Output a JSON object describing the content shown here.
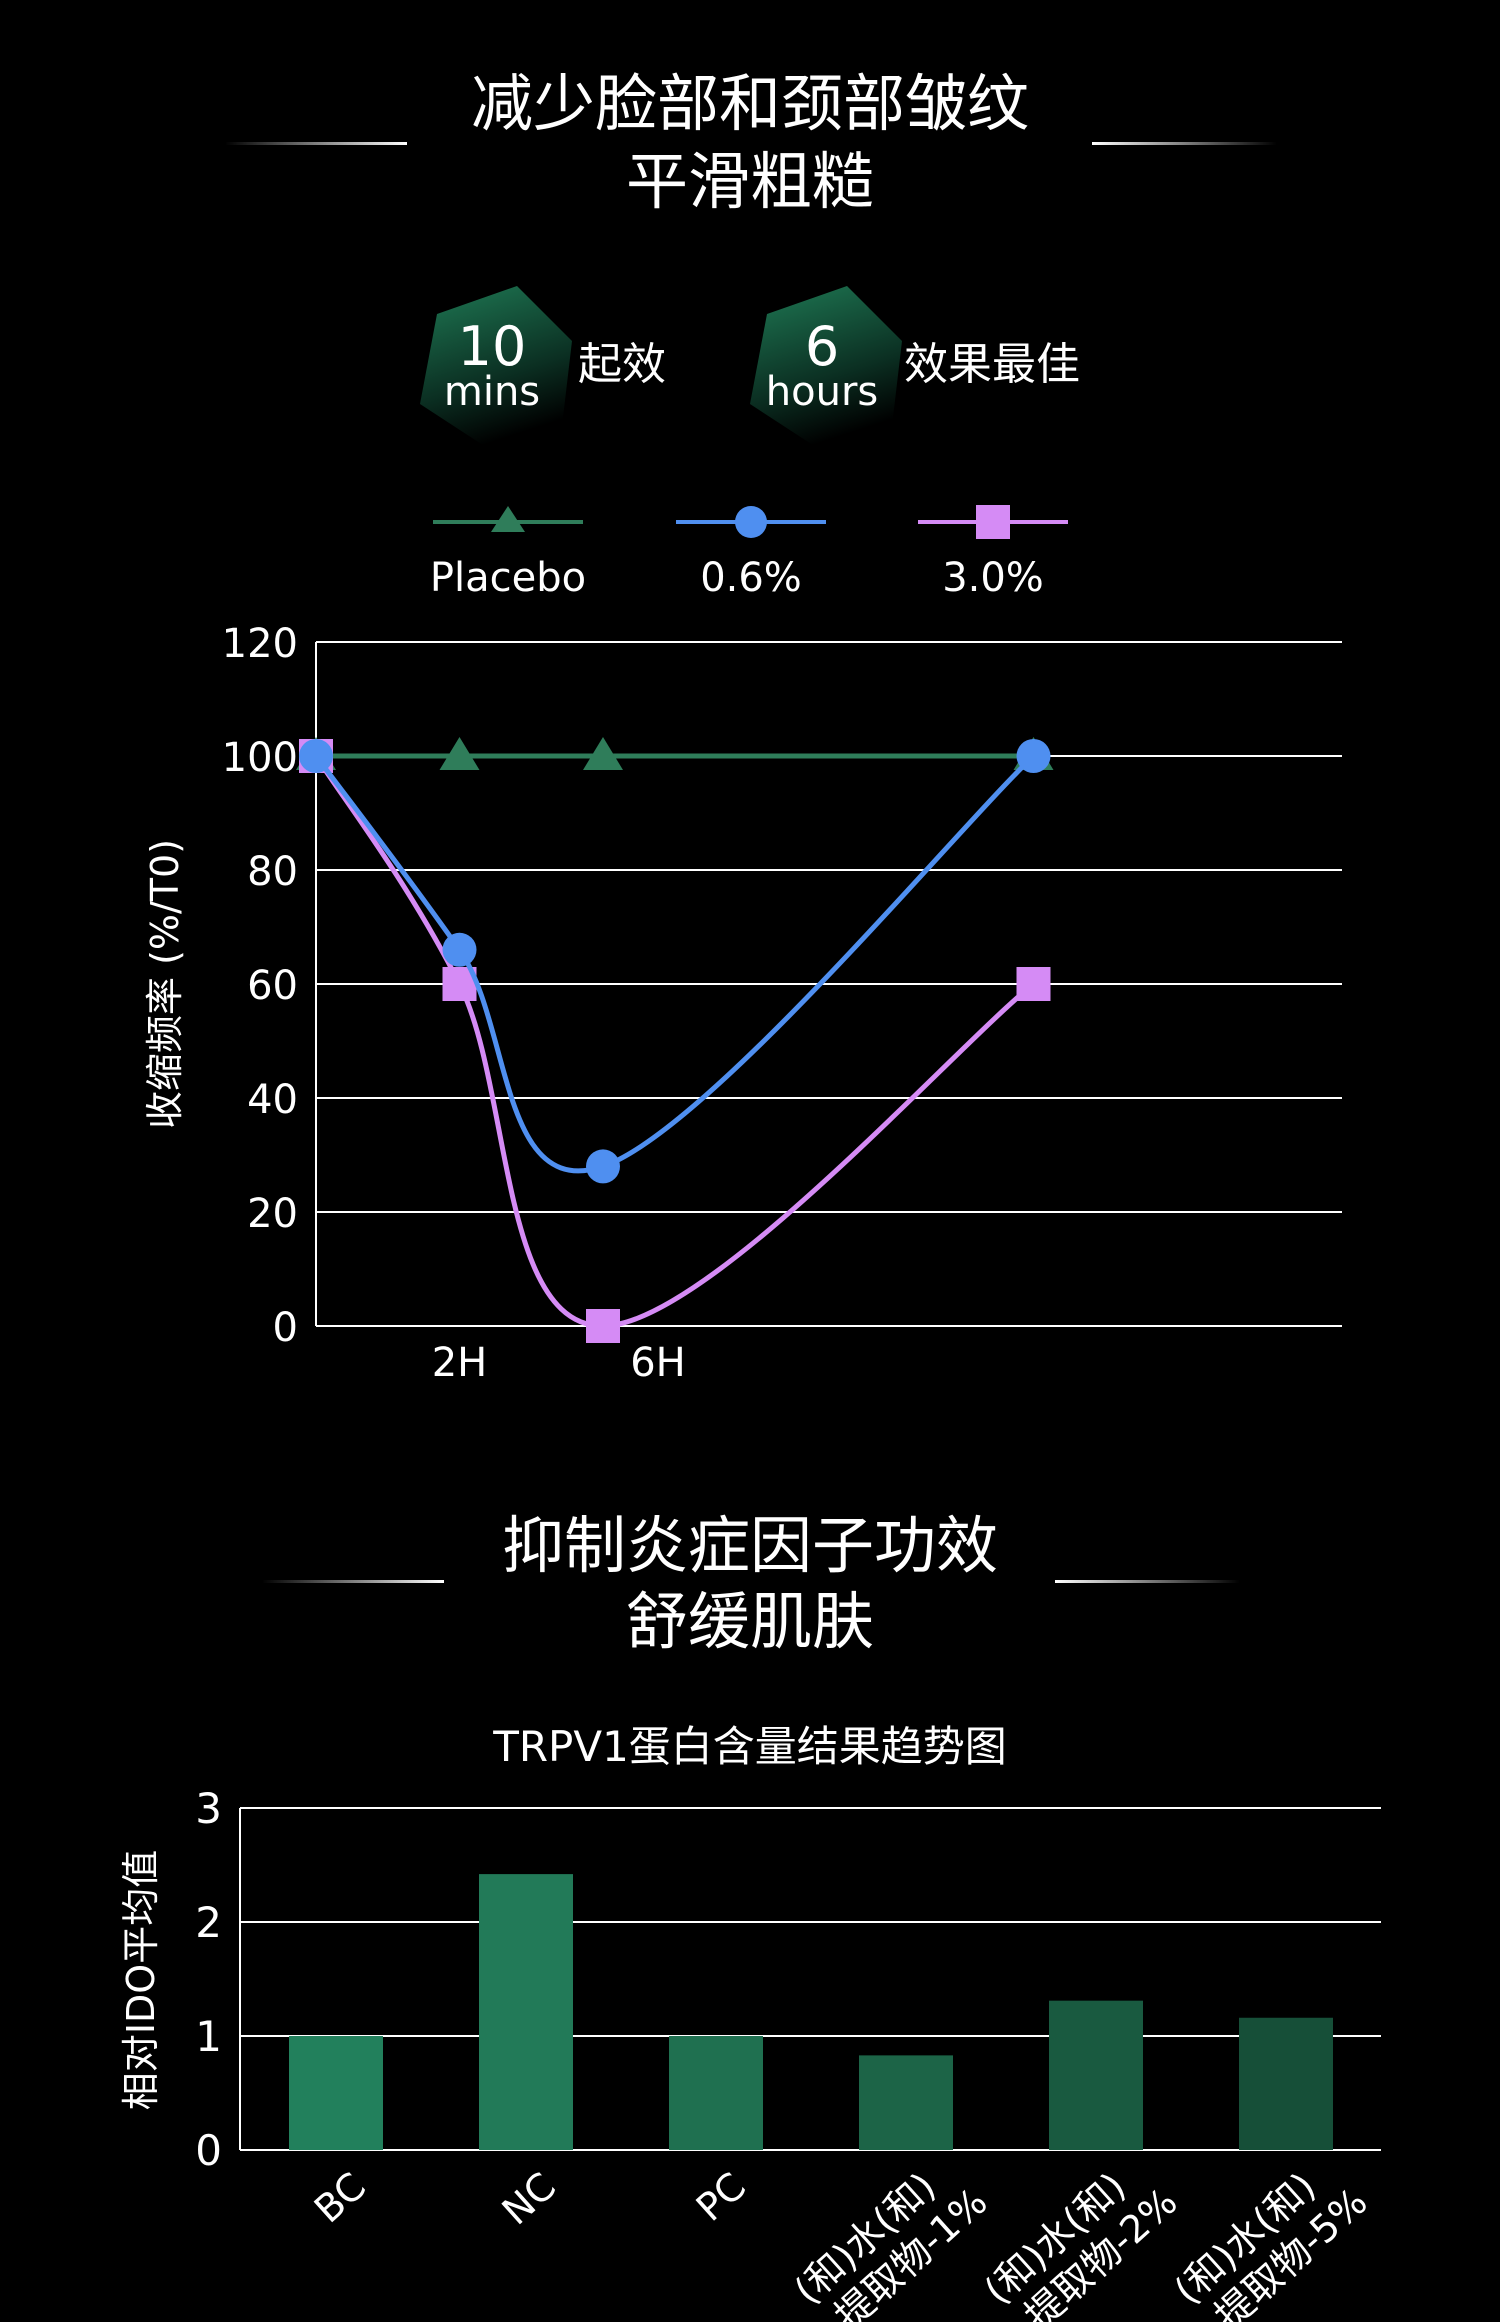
{
  "section1": {
    "title_line1": "减少脸部和颈部皱纹",
    "title_line2": "平滑粗糙",
    "badges": [
      {
        "number": "10",
        "unit": "mins",
        "caption": "起效"
      },
      {
        "number": "6",
        "unit": "hours",
        "caption": "效果最佳"
      }
    ]
  },
  "section2": {
    "title_line1": "抑制炎症因子功效",
    "title_line2": "舒缓肌肤"
  },
  "colors": {
    "placebo": "#2f7d5a",
    "series_06": "#4f8ff0",
    "series_30": "#d58bf5",
    "bar_green": "#22805c",
    "grid": "#ffffff"
  },
  "chart_data": [
    {
      "type": "line",
      "ylabel": "收缩频率 (%/T0)",
      "ylim": [
        0,
        120
      ],
      "yticks": [
        "0",
        "20",
        "40",
        "60",
        "80",
        "100",
        "120"
      ],
      "x_tick_labels": [
        "2H",
        "6H"
      ],
      "legend_placement": "top",
      "grid": true,
      "series": [
        {
          "name": "Placebo",
          "marker": "triangle",
          "x": [
            0,
            1,
            2,
            5
          ],
          "values": [
            100,
            100,
            100,
            100
          ]
        },
        {
          "name": "0.6%",
          "marker": "circle",
          "x": [
            0,
            1,
            2,
            5
          ],
          "values": [
            100,
            66,
            28,
            100
          ]
        },
        {
          "name": "3.0%",
          "marker": "square",
          "x": [
            0,
            1,
            2,
            5
          ],
          "values": [
            100,
            60,
            0,
            60
          ]
        }
      ]
    },
    {
      "type": "bar",
      "title": "TRPV1蛋白含量结果趋势图",
      "ylabel": "相对IDO平均值",
      "ylim": [
        0,
        3
      ],
      "yticks": [
        "0",
        "1",
        "2",
        "3"
      ],
      "grid": true,
      "categories": [
        "BC",
        "NC",
        "PC",
        "(和)水(和)\n提取物-1%",
        "(和)水(和)\n提取物-2%",
        "(和)水(和)\n提取物-5%"
      ],
      "values": [
        1.0,
        2.42,
        1.0,
        0.83,
        1.31,
        1.16
      ]
    }
  ]
}
